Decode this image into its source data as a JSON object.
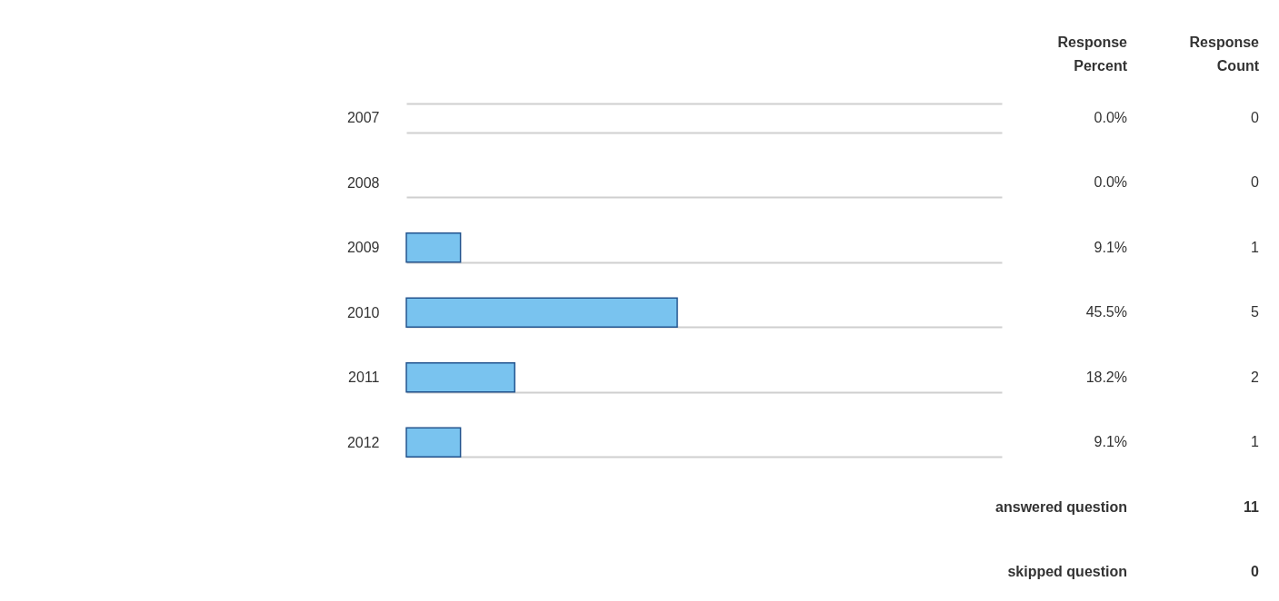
{
  "chart_data": {
    "type": "bar",
    "orientation": "horizontal",
    "categories": [
      "2007",
      "2008",
      "2009",
      "2010",
      "2011",
      "2012"
    ],
    "values": [
      0,
      0,
      9.1,
      45.5,
      18.2,
      9.1
    ],
    "color": "#79c3ef",
    "value_labels": [
      "0.0%",
      "0.0%",
      "9.1%",
      "45.5%",
      "18.2%",
      "9.1%"
    ],
    "xlim": [
      0,
      100
    ],
    "tick_labels": "y",
    "grid": "y",
    "annotations": [
      "Response Percent",
      "Response Count",
      "0",
      "0",
      "1",
      "5",
      "2",
      "1",
      "answered question",
      "11",
      "skipped question",
      "0"
    ]
  }
}
